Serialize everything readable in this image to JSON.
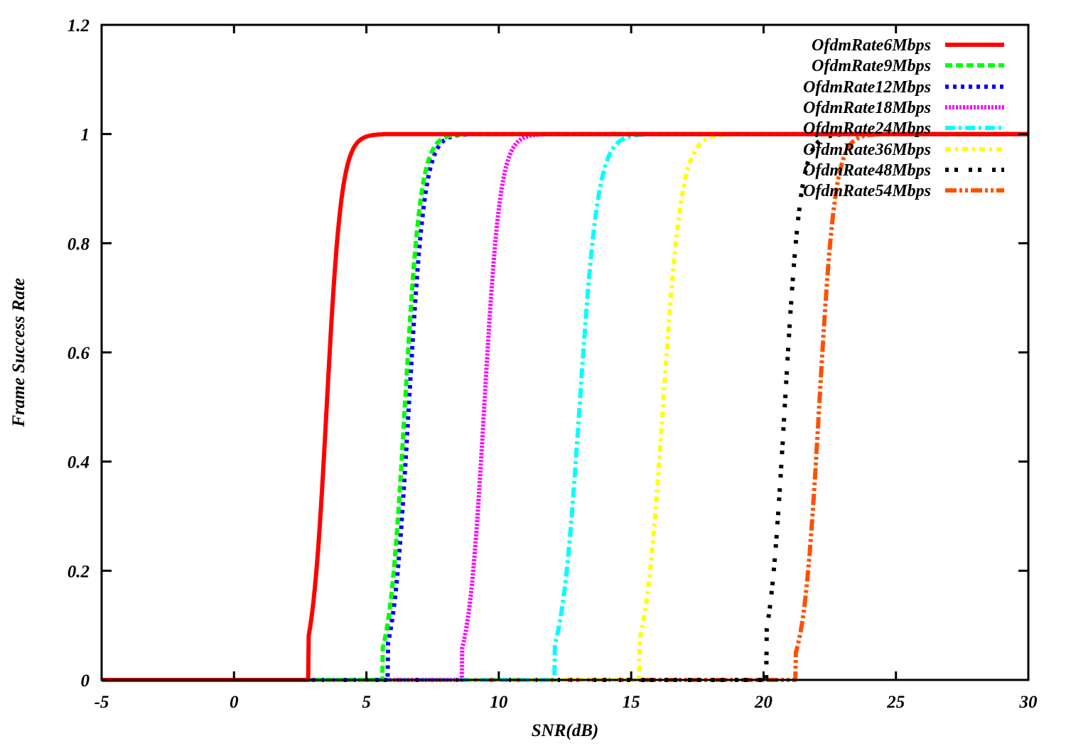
{
  "chart_data": {
    "type": "line",
    "title": "",
    "xlabel": "SNR(dB)",
    "ylabel": "Frame Success Rate",
    "xlim": [
      -5,
      30
    ],
    "ylim": [
      0,
      1.2
    ],
    "x_ticks": [
      -5,
      0,
      5,
      10,
      15,
      20,
      25,
      30
    ],
    "x_tick_labels": [
      "-5",
      "0",
      "5",
      "10",
      "15",
      "20",
      "25",
      "30"
    ],
    "y_ticks": [
      0,
      0.2,
      0.4,
      0.6,
      0.8,
      1,
      1.2
    ],
    "y_tick_labels": [
      "0",
      "0.2",
      "0.4",
      "0.6",
      "0.8",
      "1",
      "1.2"
    ],
    "grid": false,
    "legend_position": "top-right (inside)",
    "x": [
      -5,
      2,
      3,
      3.5,
      4,
      5,
      6,
      6.5,
      7,
      8,
      9,
      9.5,
      10,
      11,
      12,
      13,
      13.5,
      14,
      15,
      16,
      16.5,
      17,
      18,
      20,
      20.5,
      21,
      22,
      22.5,
      23,
      24,
      30
    ],
    "series": [
      {
        "name": "OfdmRate6Mbps",
        "color": "#ff0000",
        "dash": "solid",
        "width": 6,
        "midpoint": 3.5,
        "scale": 0.28,
        "start": 2.8,
        "values": [
          0,
          0,
          0.06,
          0.5,
          0.86,
          1,
          1,
          1,
          1,
          1,
          1,
          1,
          1,
          1,
          1,
          1,
          1,
          1,
          1,
          1,
          1,
          1,
          1,
          1,
          1,
          1,
          1,
          1,
          1,
          1,
          1
        ]
      },
      {
        "name": "OfdmRate9Mbps",
        "color": "#00ff00",
        "dash": "dashed",
        "width": 6,
        "midpoint": 6.45,
        "scale": 0.3,
        "start": 5.6,
        "values": [
          0,
          0,
          0,
          0,
          0,
          0,
          0.18,
          0.57,
          0.85,
          0.99,
          1,
          1,
          1,
          1,
          1,
          1,
          1,
          1,
          1,
          1,
          1,
          1,
          1,
          1,
          1,
          1,
          1,
          1,
          1,
          1,
          1
        ]
      },
      {
        "name": "OfdmRate12Mbps",
        "color": "#0000ff",
        "dash": "dotted",
        "width": 6,
        "midpoint": 6.6,
        "scale": 0.3,
        "start": 5.8,
        "values": [
          0,
          0,
          0,
          0,
          0,
          0,
          0.12,
          0.42,
          0.79,
          0.98,
          1,
          1,
          1,
          1,
          1,
          1,
          1,
          1,
          1,
          1,
          1,
          1,
          1,
          1,
          1,
          1,
          1,
          1,
          1,
          1,
          1
        ]
      },
      {
        "name": "OfdmRate18Mbps",
        "color": "#ff00ff",
        "dash": "dense-dotted",
        "width": 6,
        "midpoint": 9.45,
        "scale": 0.3,
        "start": 8.6,
        "values": [
          0,
          0,
          0,
          0,
          0,
          0,
          0,
          0,
          0,
          0,
          0.14,
          0.54,
          0.86,
          0.99,
          1,
          1,
          1,
          1,
          1,
          1,
          1,
          1,
          1,
          1,
          1,
          1,
          1,
          1,
          1,
          1,
          1
        ]
      },
      {
        "name": "OfdmRate24Mbps",
        "color": "#00ffff",
        "dash": "dash-dot",
        "width": 6,
        "midpoint": 13.05,
        "scale": 0.35,
        "start": 12.1,
        "values": [
          0,
          0,
          0,
          0,
          0,
          0,
          0,
          0,
          0,
          0,
          0,
          0,
          0,
          0,
          0.06,
          0.46,
          0.79,
          0.95,
          1,
          1,
          1,
          1,
          1,
          1,
          1,
          1,
          1,
          1,
          1,
          1,
          1
        ]
      },
      {
        "name": "OfdmRate36Mbps",
        "color": "#ffff00",
        "dash": "dash-dot-short",
        "width": 6,
        "midpoint": 16.2,
        "scale": 0.35,
        "start": 15.3,
        "values": [
          0,
          0,
          0,
          0,
          0,
          0,
          0,
          0,
          0,
          0,
          0,
          0,
          0,
          0,
          0,
          0,
          0,
          0,
          0.02,
          0.36,
          0.7,
          0.91,
          1,
          1,
          1,
          1,
          1,
          1,
          1,
          1,
          1
        ]
      },
      {
        "name": "OfdmRate48Mbps",
        "color": "#000000",
        "dash": "sparse-dots",
        "width": 6,
        "midpoint": 20.8,
        "scale": 0.3,
        "start": 20.1,
        "values": [
          0,
          0,
          0,
          0,
          0,
          0,
          0,
          0,
          0,
          0,
          0,
          0,
          0,
          0,
          0,
          0,
          0,
          0,
          0,
          0,
          0,
          0,
          0,
          0,
          0.23,
          0.66,
          0.99,
          1,
          1,
          1,
          1
        ]
      },
      {
        "name": "OfdmRate54Mbps",
        "color": "#ff5000",
        "dash": "dash-dot-dot",
        "width": 6,
        "midpoint": 22.1,
        "scale": 0.3,
        "start": 21.2,
        "values": [
          0,
          0,
          0,
          0,
          0,
          0,
          0,
          0,
          0,
          0,
          0,
          0,
          0,
          0,
          0,
          0,
          0,
          0,
          0,
          0,
          0,
          0,
          0,
          0,
          0,
          0,
          0.42,
          0.81,
          0.97,
          1,
          1
        ]
      }
    ]
  },
  "legend": {
    "items": [
      {
        "label": "OfdmRate6Mbps"
      },
      {
        "label": "OfdmRate9Mbps"
      },
      {
        "label": "OfdmRate12Mbps"
      },
      {
        "label": "OfdmRate18Mbps"
      },
      {
        "label": "OfdmRate24Mbps"
      },
      {
        "label": "OfdmRate36Mbps"
      },
      {
        "label": "OfdmRate48Mbps"
      },
      {
        "label": "OfdmRate54Mbps"
      }
    ]
  }
}
